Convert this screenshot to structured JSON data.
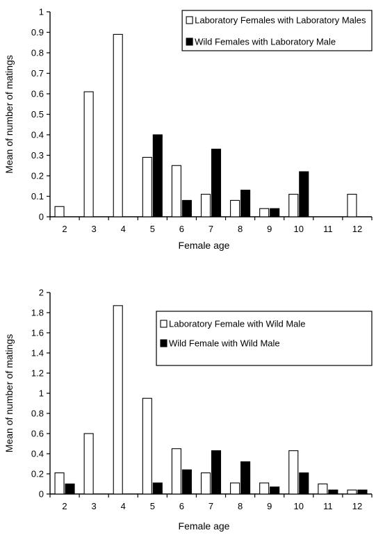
{
  "chart_data": [
    {
      "type": "bar",
      "categories": [
        "2",
        "3",
        "4",
        "5",
        "6",
        "7",
        "8",
        "9",
        "10",
        "11",
        "12"
      ],
      "series": [
        {
          "name": "Laboratory Females with Laboratory Males",
          "fill": "#ffffff",
          "values": [
            0.05,
            0.61,
            0.89,
            0.29,
            0.25,
            0.11,
            0.08,
            0.04,
            0.11,
            0,
            0.11
          ]
        },
        {
          "name": "Wild Females with Laboratory Male",
          "fill": "#000000",
          "values": [
            0,
            0,
            0,
            0.4,
            0.08,
            0.33,
            0.13,
            0.04,
            0.22,
            0,
            0
          ]
        }
      ],
      "xlabel": "Female age",
      "ylabel": "Mean of number of matings",
      "ylim": [
        0,
        1
      ],
      "yticks": [
        "0",
        "0.1",
        "0.2",
        "0.3",
        "0.4",
        "0.5",
        "0.6",
        "0.7",
        "0.8",
        "0.9",
        "1"
      ],
      "legend": "top-right",
      "grid": false
    },
    {
      "type": "bar",
      "categories": [
        "2",
        "3",
        "4",
        "5",
        "6",
        "7",
        "8",
        "9",
        "10",
        "11",
        "12"
      ],
      "series": [
        {
          "name": "Laboratory Female with Wild Male",
          "fill": "#ffffff",
          "values": [
            0.21,
            0.6,
            1.87,
            0.95,
            0.45,
            0.21,
            0.11,
            0.11,
            0.43,
            0.1,
            0.04
          ]
        },
        {
          "name": "Wild Female with Wild  Male",
          "fill": "#000000",
          "values": [
            0.1,
            0,
            0,
            0.11,
            0.24,
            0.43,
            0.32,
            0.07,
            0.21,
            0.04,
            0.04
          ]
        }
      ],
      "xlabel": "Female age",
      "ylabel": "Mean of number of matings",
      "ylim": [
        0,
        2
      ],
      "yticks": [
        "0",
        "0.2",
        "0.4",
        "0.6",
        "0.8",
        "1",
        "1.2",
        "1.4",
        "1.6",
        "1.8",
        "2"
      ],
      "legend": "top-right",
      "grid": false
    }
  ]
}
